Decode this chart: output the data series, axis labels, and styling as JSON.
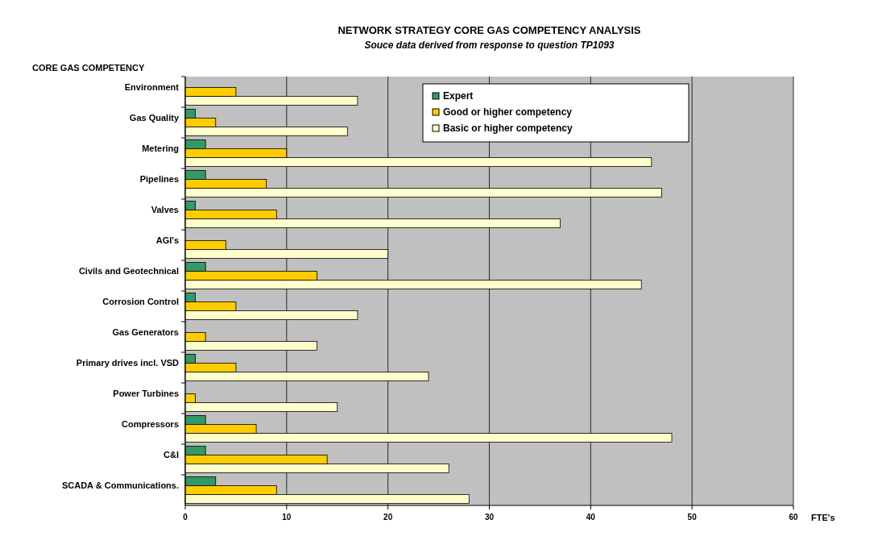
{
  "chart_data": {
    "type": "bar",
    "orientation": "horizontal",
    "title": "NETWORK STRATEGY CORE GAS COMPETENCY ANALYSIS",
    "subtitle": "Souce data derived from response to question TP1093",
    "ylabel": "CORE GAS COMPETENCY",
    "xlabel": "FTE's",
    "categories": [
      "Environment",
      "Gas Quality",
      "Metering",
      "Pipelines",
      "Valves",
      "AGI's",
      "Civils and Geotechnical",
      "Corrosion Control",
      "Gas Generators",
      "Primary drives incl. VSD",
      "Power Turbines",
      "Compressors",
      "C&I",
      "SCADA & Communications."
    ],
    "series": [
      {
        "name": "Expert",
        "color": "#339966",
        "values": [
          0,
          1,
          2,
          2,
          1,
          0,
          2,
          1,
          0,
          1,
          0,
          2,
          2,
          3
        ]
      },
      {
        "name": "Good or higher competency",
        "color": "#ffcc00",
        "values": [
          5,
          3,
          10,
          8,
          9,
          4,
          13,
          5,
          2,
          5,
          1,
          7,
          14,
          9
        ]
      },
      {
        "name": "Basic or higher competency",
        "color": "#ffffcc",
        "values": [
          17,
          16,
          46,
          47,
          37,
          20,
          45,
          17,
          13,
          24,
          15,
          48,
          26,
          28
        ]
      }
    ],
    "xlim": [
      0,
      60
    ],
    "xticks": [
      0,
      10,
      20,
      30,
      40,
      50,
      60
    ],
    "grid": "x",
    "legend": "top right"
  }
}
